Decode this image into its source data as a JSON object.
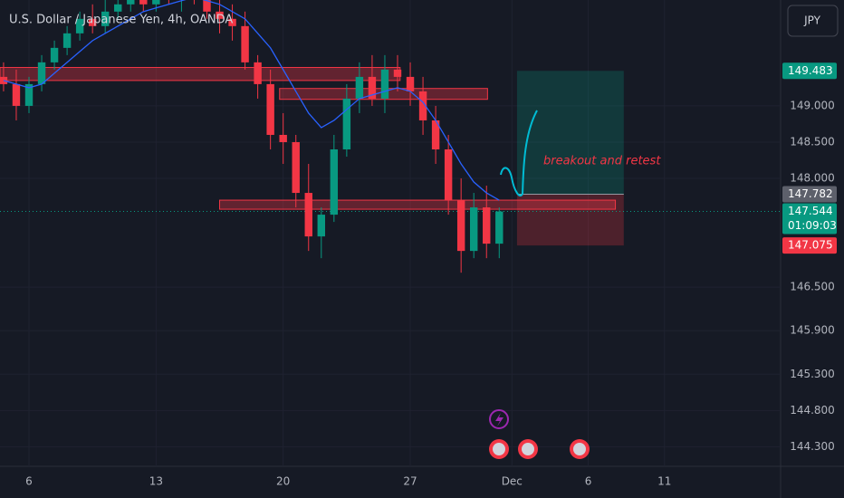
{
  "chart_data": {
    "type": "candlestick",
    "title": "U.S. Dollar / Japanese Yen, 4h, OANDA",
    "currency": "JPY",
    "up_color": "#089981",
    "down_color": "#f23645",
    "x": [
      -1,
      -0.5,
      0,
      0.5,
      1,
      1.5,
      2,
      2.5,
      3,
      3.5,
      4,
      4.5,
      5,
      5.5,
      6,
      6.5,
      7,
      7.5,
      8,
      8.5,
      9,
      9.5,
      10,
      10.5,
      11,
      11.5,
      12,
      12.5,
      13,
      13.5,
      14,
      14.5,
      15,
      15.5,
      16,
      16.5,
      17,
      17.5,
      18,
      18.5
    ],
    "open": [
      149.4,
      149.3,
      149.0,
      149.3,
      149.6,
      149.8,
      150.0,
      150.2,
      150.1,
      150.3,
      150.4,
      150.5,
      150.4,
      150.6,
      150.5,
      150.6,
      150.5,
      150.3,
      150.2,
      150.1,
      149.6,
      149.3,
      148.6,
      148.5,
      147.8,
      147.2,
      147.5,
      148.4,
      149.1,
      149.4,
      149.1,
      149.5,
      149.4,
      149.2,
      148.8,
      148.4,
      147.7,
      147.0,
      147.6,
      147.1
    ],
    "high": [
      149.6,
      149.5,
      149.4,
      149.7,
      149.9,
      150.1,
      150.3,
      150.4,
      150.5,
      150.6,
      150.7,
      150.8,
      150.8,
      150.9,
      150.8,
      150.8,
      150.7,
      150.5,
      150.4,
      150.3,
      149.7,
      149.5,
      148.9,
      148.6,
      148.2,
      147.6,
      148.6,
      149.3,
      149.6,
      149.7,
      149.7,
      149.7,
      149.6,
      149.4,
      149.0,
      148.6,
      148.0,
      147.8,
      147.9,
      147.6
    ],
    "low": [
      149.2,
      148.8,
      148.9,
      149.2,
      149.5,
      149.7,
      149.9,
      150.0,
      150.0,
      150.2,
      150.3,
      150.3,
      150.3,
      150.4,
      150.3,
      150.4,
      150.2,
      150.0,
      149.9,
      149.5,
      149.1,
      148.4,
      148.2,
      147.6,
      147.0,
      146.9,
      147.4,
      148.3,
      148.9,
      149.0,
      148.9,
      149.2,
      149.0,
      148.6,
      148.2,
      147.5,
      146.7,
      146.9,
      146.9,
      146.9
    ],
    "close": [
      149.3,
      149.0,
      149.3,
      149.6,
      149.8,
      150.0,
      150.2,
      150.1,
      150.3,
      150.4,
      150.5,
      150.4,
      150.6,
      150.5,
      150.6,
      150.5,
      150.3,
      150.2,
      150.1,
      149.6,
      149.3,
      148.6,
      148.5,
      147.8,
      147.2,
      147.5,
      148.4,
      149.1,
      149.4,
      149.1,
      149.5,
      149.4,
      149.2,
      148.8,
      148.4,
      147.7,
      147.0,
      147.6,
      147.1,
      147.544
    ],
    "ma": {
      "color": "#2962ff",
      "values": [
        149.35,
        149.3,
        149.25,
        149.3,
        149.45,
        149.6,
        149.75,
        149.9,
        150.0,
        150.1,
        150.2,
        150.3,
        150.35,
        150.4,
        150.45,
        150.5,
        150.45,
        150.4,
        150.3,
        150.2,
        150.0,
        149.8,
        149.5,
        149.2,
        148.9,
        148.7,
        148.8,
        148.95,
        149.1,
        149.15,
        149.2,
        149.25,
        149.2,
        149.05,
        148.8,
        148.5,
        148.2,
        147.95,
        147.8,
        147.7
      ]
    },
    "xlim": [
      -1.14,
      29.57
    ],
    "xticks": [
      {
        "value": 0,
        "label": "6"
      },
      {
        "value": 5,
        "label": "13"
      },
      {
        "value": 10,
        "label": "20"
      },
      {
        "value": 15,
        "label": "27"
      },
      {
        "value": 19,
        "label": "Dec"
      },
      {
        "value": 22,
        "label": "6"
      },
      {
        "value": 25,
        "label": "11"
      }
    ],
    "ylim": [
      144.03,
      150.46
    ],
    "yticks": [
      {
        "value": 149,
        "label": "149.000"
      },
      {
        "value": 148.5,
        "label": "148.500"
      },
      {
        "value": 148,
        "label": "148.000"
      },
      {
        "value": 146.5,
        "label": "146.500"
      },
      {
        "value": 145.9,
        "label": "145.900"
      },
      {
        "value": 145.3,
        "label": "145.300"
      },
      {
        "value": 144.8,
        "label": "144.800"
      },
      {
        "value": 144.3,
        "label": "144.300"
      }
    ],
    "zones": [
      {
        "x": [
          -1.14,
          14.6
        ],
        "y": [
          149.35,
          149.53
        ]
      },
      {
        "x": [
          9.86,
          18.04
        ],
        "y": [
          149.09,
          149.24
        ]
      },
      {
        "x": [
          7.5,
          23.07
        ],
        "y": [
          147.575,
          147.7
        ]
      }
    ],
    "position": {
      "x": [
        19.2,
        23.4
      ],
      "target": 149.483,
      "entry": 147.782,
      "stop": 147.075
    },
    "last_price": 147.544,
    "countdown": "01:09:03",
    "annotation": "breakout and retest"
  }
}
